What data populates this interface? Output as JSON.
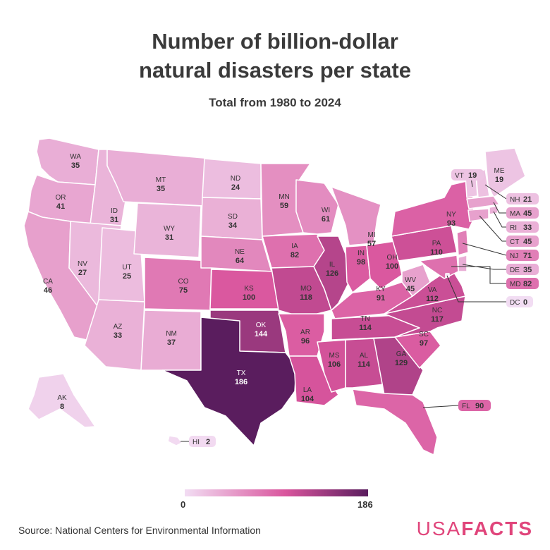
{
  "title_line1": "Number of billion-dollar",
  "title_line2": "natural disasters per state",
  "subtitle": "Total from 1980 to 2024",
  "legend": {
    "min": "0",
    "max": "186",
    "color_low": "#f2ddf3",
    "color_mid": "#d9559d",
    "color_high": "#5a1d5e"
  },
  "source": "Source: National Centers for Environmental Information",
  "brand": {
    "part1": "USA",
    "part2": "FACTS",
    "color": "#e0457b"
  },
  "states": {
    "WA": {
      "code": "WA",
      "value": 35
    },
    "OR": {
      "code": "OR",
      "value": 41
    },
    "CA": {
      "code": "CA",
      "value": 46
    },
    "ID": {
      "code": "ID",
      "value": 31
    },
    "NV": {
      "code": "NV",
      "value": 27
    },
    "UT": {
      "code": "UT",
      "value": 25
    },
    "AZ": {
      "code": "AZ",
      "value": 33
    },
    "MT": {
      "code": "MT",
      "value": 35
    },
    "WY": {
      "code": "WY",
      "value": 31
    },
    "CO": {
      "code": "CO",
      "value": 75
    },
    "NM": {
      "code": "NM",
      "value": 37
    },
    "ND": {
      "code": "ND",
      "value": 24
    },
    "SD": {
      "code": "SD",
      "value": 34
    },
    "NE": {
      "code": "NE",
      "value": 64
    },
    "KS": {
      "code": "KS",
      "value": 100
    },
    "OK": {
      "code": "OK",
      "value": 144
    },
    "TX": {
      "code": "TX",
      "value": 186
    },
    "MN": {
      "code": "MN",
      "value": 59
    },
    "IA": {
      "code": "IA",
      "value": 82
    },
    "MO": {
      "code": "MO",
      "value": 118
    },
    "AR": {
      "code": "AR",
      "value": 96
    },
    "LA": {
      "code": "LA",
      "value": 104
    },
    "WI": {
      "code": "WI",
      "value": 61
    },
    "IL": {
      "code": "IL",
      "value": 126
    },
    "MI": {
      "code": "MI",
      "value": 57
    },
    "IN": {
      "code": "IN",
      "value": 98
    },
    "OH": {
      "code": "OH",
      "value": 100
    },
    "KY": {
      "code": "KY",
      "value": 91
    },
    "TN": {
      "code": "TN",
      "value": 114
    },
    "MS": {
      "code": "MS",
      "value": 106
    },
    "AL": {
      "code": "AL",
      "value": 114
    },
    "GA": {
      "code": "GA",
      "value": 129
    },
    "FL": {
      "code": "FL",
      "value": 90
    },
    "SC": {
      "code": "SC",
      "value": 97
    },
    "NC": {
      "code": "NC",
      "value": 117
    },
    "VA": {
      "code": "VA",
      "value": 112
    },
    "WV": {
      "code": "WV",
      "value": 45
    },
    "PA": {
      "code": "PA",
      "value": 110
    },
    "NY": {
      "code": "NY",
      "value": 93
    },
    "VT": {
      "code": "VT",
      "value": 19
    },
    "NH": {
      "code": "NH",
      "value": 21
    },
    "ME": {
      "code": "ME",
      "value": 19
    },
    "MA": {
      "code": "MA",
      "value": 45
    },
    "RI": {
      "code": "RI",
      "value": 33
    },
    "CT": {
      "code": "CT",
      "value": 45
    },
    "NJ": {
      "code": "NJ",
      "value": 71
    },
    "DE": {
      "code": "DE",
      "value": 35
    },
    "MD": {
      "code": "MD",
      "value": 82
    },
    "DC": {
      "code": "DC",
      "value": 0
    },
    "AK": {
      "code": "AK",
      "value": 8
    },
    "HI": {
      "code": "HI",
      "value": 2
    }
  }
}
